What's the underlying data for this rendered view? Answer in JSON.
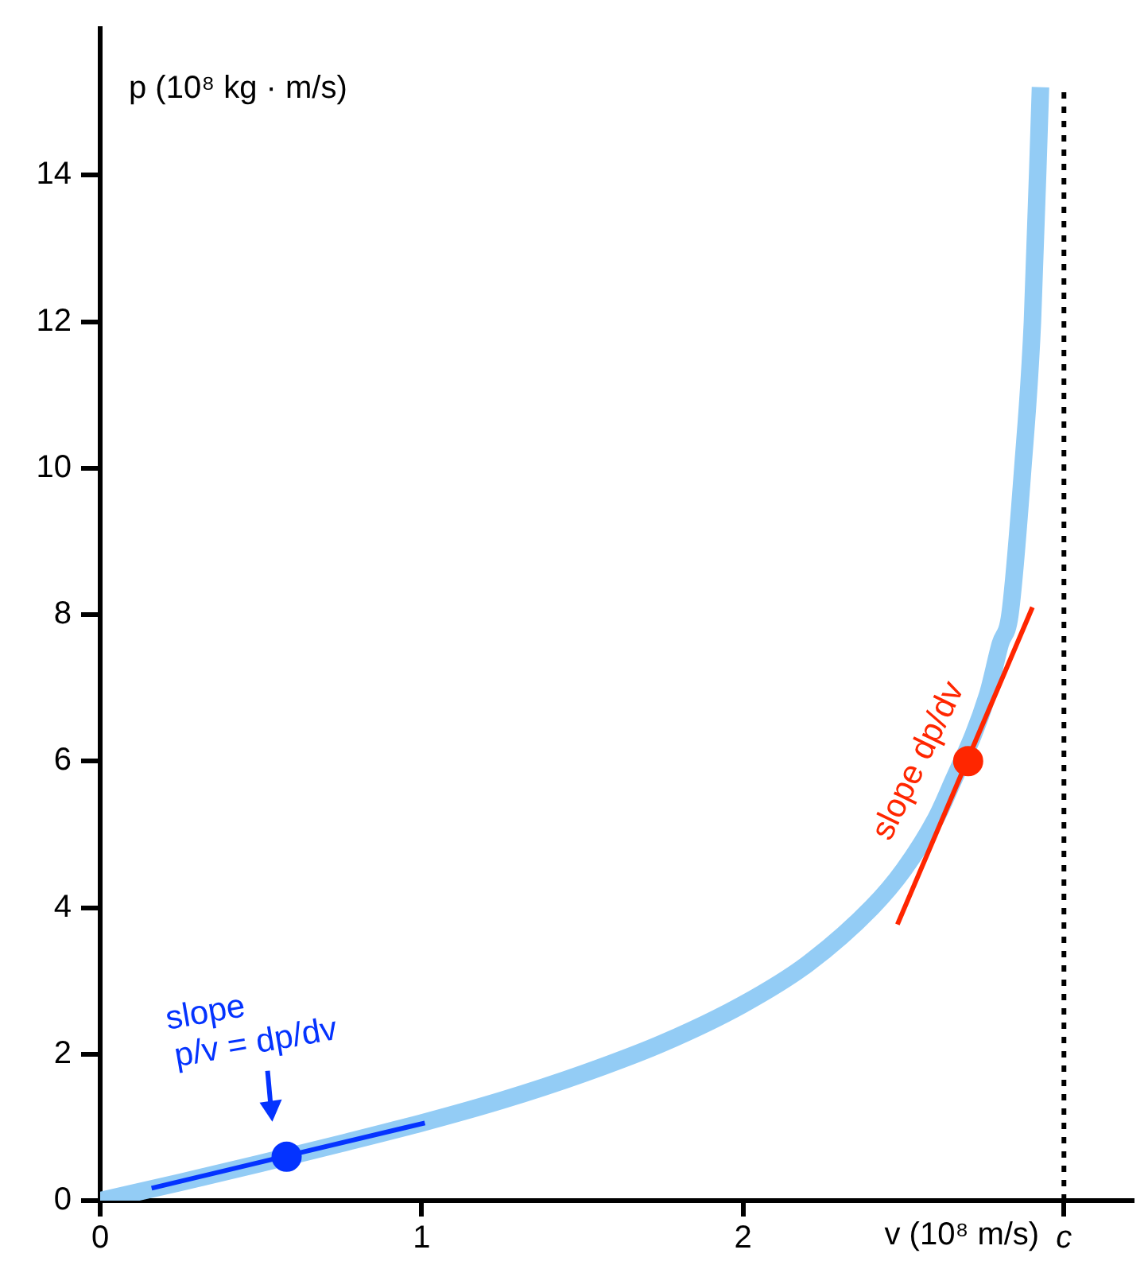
{
  "chart_data": {
    "type": "line",
    "xlabel": "v (10⁸ m/s)",
    "ylabel": "p (10⁸ kg · m/s)",
    "xlim": [
      0,
      3.21
    ],
    "xticks": [
      0,
      1,
      2,
      {
        "value": 2.998,
        "label": "c"
      }
    ],
    "ylim": [
      0,
      16
    ],
    "yticks": [
      0,
      2,
      4,
      6,
      8,
      10,
      12,
      14
    ],
    "grid": false,
    "legend": false,
    "series": [
      {
        "type": "line",
        "color": "#93ccf5",
        "marker": "none",
        "x": [
          0,
          0.25,
          0.5,
          0.75,
          1,
          1.25,
          1.5,
          1.75,
          2,
          2.2,
          2.4,
          2.5,
          2.6,
          2.64,
          2.76,
          2.8,
          2.83,
          2.87,
          2.9,
          2.925
        ],
        "values": [
          0,
          0.25,
          0.51,
          0.78,
          1.06,
          1.37,
          1.73,
          2.15,
          2.68,
          3.23,
          4.0,
          4.52,
          5.22,
          5.6,
          6.9,
          7.6,
          8.0,
          10.0,
          12.0,
          15.2
        ]
      },
      {
        "type": "line",
        "color": "#0433ff",
        "marker": "none",
        "x": [
          0.16,
          1.01
        ],
        "values": [
          0.17,
          1.06
        ]
      },
      {
        "type": "line",
        "color": "#ff2600",
        "marker": "none",
        "x": [
          2.48,
          2.9
        ],
        "values": [
          3.77,
          8.1
        ]
      },
      {
        "type": "scatter",
        "color": "#0433ff",
        "marker": "circle",
        "x": [
          0.58
        ],
        "values": [
          0.6
        ]
      },
      {
        "type": "scatter",
        "color": "#ff2600",
        "marker": "circle",
        "x": [
          2.7
        ],
        "values": [
          6.0
        ]
      }
    ],
    "ref_lines": [
      {
        "axis": "x",
        "value": 2.998,
        "color": "#000000",
        "line_style": "dotted"
      }
    ],
    "annotations": [
      {
        "text": "slope p/v = dp/dv",
        "x": 0.58,
        "y": 0.6
      },
      {
        "text": "slope dp/dv",
        "x": 2.7,
        "y": 6.0
      }
    ]
  }
}
